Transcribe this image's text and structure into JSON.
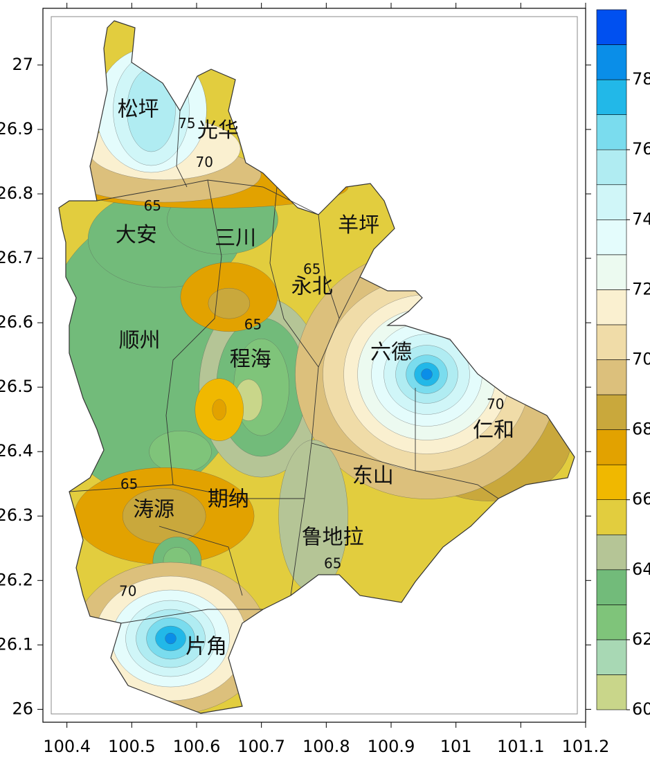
{
  "chart_data": {
    "type": "contour-map",
    "xlim": [
      100.363,
      101.2
    ],
    "ylim": [
      25.98,
      27.088
    ],
    "xticks": [
      100.4,
      100.5,
      100.6,
      100.7,
      100.8,
      100.9,
      101,
      101.1,
      101.2
    ],
    "yticks": [
      26,
      26.1,
      26.2,
      26.3,
      26.4,
      26.5,
      26.6,
      26.7,
      26.8,
      26.9,
      27
    ],
    "colorbar": {
      "levels": [
        60,
        61,
        62,
        63,
        64,
        65,
        66,
        67,
        68,
        69,
        70,
        71,
        72,
        73,
        74,
        75,
        76,
        77,
        78,
        79,
        80
      ],
      "ticks": [
        60,
        62,
        64,
        66,
        68,
        70,
        72,
        74,
        76,
        78
      ],
      "colors": [
        "#c9d68a",
        "#a8d8b4",
        "#7fc47a",
        "#72bb7a",
        "#b5c596",
        "#e2cd3e",
        "#f0b800",
        "#e2a200",
        "#c9a83c",
        "#dcc07c",
        "#f0dca8",
        "#faf0d0",
        "#ecfaf0",
        "#e4fcfc",
        "#d0f6f8",
        "#b0ecf2",
        "#7adcee",
        "#22b8e8",
        "#0a8ee8",
        "#0050f0"
      ]
    },
    "fields": [
      {
        "value": 63,
        "lon": 100.52,
        "lat": 26.55
      },
      {
        "value": 63,
        "lon": 100.55,
        "lat": 26.73
      },
      {
        "value": 63,
        "lon": 100.64,
        "lat": 26.76
      },
      {
        "value": 67,
        "lon": 100.62,
        "lat": 26.81
      },
      {
        "value": 64,
        "lon": 100.7,
        "lat": 26.5
      },
      {
        "value": 63,
        "lon": 100.7,
        "lat": 26.5
      },
      {
        "value": 62,
        "lon": 100.7,
        "lat": 26.5
      },
      {
        "value": 60,
        "lon": 100.68,
        "lat": 26.48
      },
      {
        "value": 67,
        "lon": 100.65,
        "lat": 26.64
      },
      {
        "value": 68,
        "lon": 100.65,
        "lat": 26.63
      },
      {
        "value": 66,
        "lon": 100.635,
        "lat": 26.465
      },
      {
        "value": 67,
        "lon": 100.635,
        "lat": 26.465
      },
      {
        "value": 62,
        "lon": 100.575,
        "lat": 26.4
      },
      {
        "value": 68,
        "lon": 101.05,
        "lat": 26.42
      },
      {
        "value": 69,
        "lon": 100.955,
        "lat": 26.52
      },
      {
        "value": 70,
        "lon": 100.955,
        "lat": 26.52
      },
      {
        "value": 71,
        "lon": 100.955,
        "lat": 26.52
      },
      {
        "value": 72,
        "lon": 100.955,
        "lat": 26.52
      },
      {
        "value": 73,
        "lon": 100.955,
        "lat": 26.52
      },
      {
        "value": 74,
        "lon": 100.955,
        "lat": 26.52
      },
      {
        "value": 75,
        "lon": 100.955,
        "lat": 26.52
      },
      {
        "value": 76,
        "lon": 100.955,
        "lat": 26.52
      },
      {
        "value": 77,
        "lon": 100.955,
        "lat": 26.52
      },
      {
        "value": 78,
        "lon": 100.955,
        "lat": 26.52
      },
      {
        "value": 64,
        "lon": 100.78,
        "lat": 26.3
      },
      {
        "value": 67,
        "lon": 100.55,
        "lat": 26.3
      },
      {
        "value": 68,
        "lon": 100.55,
        "lat": 26.3
      },
      {
        "value": 63,
        "lon": 100.57,
        "lat": 26.23
      },
      {
        "value": 62,
        "lon": 100.57,
        "lat": 26.23
      },
      {
        "value": 69,
        "lon": 100.55,
        "lat": 26.83
      },
      {
        "value": 71,
        "lon": 100.55,
        "lat": 26.87
      },
      {
        "value": 73,
        "lon": 100.53,
        "lat": 26.93
      },
      {
        "value": 74,
        "lon": 100.53,
        "lat": 26.93
      },
      {
        "value": 75,
        "lon": 100.53,
        "lat": 26.93
      },
      {
        "value": 69,
        "lon": 100.56,
        "lat": 26.11
      },
      {
        "value": 71,
        "lon": 100.56,
        "lat": 26.11
      },
      {
        "value": 73,
        "lon": 100.56,
        "lat": 26.11
      },
      {
        "value": 74,
        "lon": 100.56,
        "lat": 26.11
      },
      {
        "value": 75,
        "lon": 100.56,
        "lat": 26.11
      },
      {
        "value": 76,
        "lon": 100.56,
        "lat": 26.11
      },
      {
        "value": 77,
        "lon": 100.56,
        "lat": 26.11
      },
      {
        "value": 78,
        "lon": 100.56,
        "lat": 26.11
      }
    ],
    "contour_labels": [
      {
        "value": 75,
        "lon": 100.585,
        "lat": 26.908
      },
      {
        "value": 70,
        "lon": 100.612,
        "lat": 26.848
      },
      {
        "value": 65,
        "lon": 100.532,
        "lat": 26.78
      },
      {
        "value": 65,
        "lon": 100.778,
        "lat": 26.682
      },
      {
        "value": 65,
        "lon": 100.687,
        "lat": 26.596
      },
      {
        "value": 70,
        "lon": 101.061,
        "lat": 26.472
      },
      {
        "value": 65,
        "lon": 100.496,
        "lat": 26.348
      },
      {
        "value": 65,
        "lon": 100.81,
        "lat": 26.225
      },
      {
        "value": 70,
        "lon": 100.494,
        "lat": 26.182
      }
    ],
    "places": [
      {
        "name": "松坪",
        "lon": 100.51,
        "lat": 26.93
      },
      {
        "name": "光华",
        "lon": 100.633,
        "lat": 26.897
      },
      {
        "name": "大安",
        "lon": 100.507,
        "lat": 26.735
      },
      {
        "name": "三川",
        "lon": 100.66,
        "lat": 26.73
      },
      {
        "name": "羊坪",
        "lon": 100.85,
        "lat": 26.75
      },
      {
        "name": "永北",
        "lon": 100.778,
        "lat": 26.655
      },
      {
        "name": "顺州",
        "lon": 100.512,
        "lat": 26.571
      },
      {
        "name": "程海",
        "lon": 100.683,
        "lat": 26.542
      },
      {
        "name": "六德",
        "lon": 100.9,
        "lat": 26.553
      },
      {
        "name": "仁和",
        "lon": 101.058,
        "lat": 26.432
      },
      {
        "name": "东山",
        "lon": 100.872,
        "lat": 26.361
      },
      {
        "name": "涛源",
        "lon": 100.534,
        "lat": 26.309
      },
      {
        "name": "期纳",
        "lon": 100.649,
        "lat": 26.325
      },
      {
        "name": "鲁地拉",
        "lon": 100.81,
        "lat": 26.266
      },
      {
        "name": "片角",
        "lon": 100.615,
        "lat": 26.096
      }
    ]
  }
}
